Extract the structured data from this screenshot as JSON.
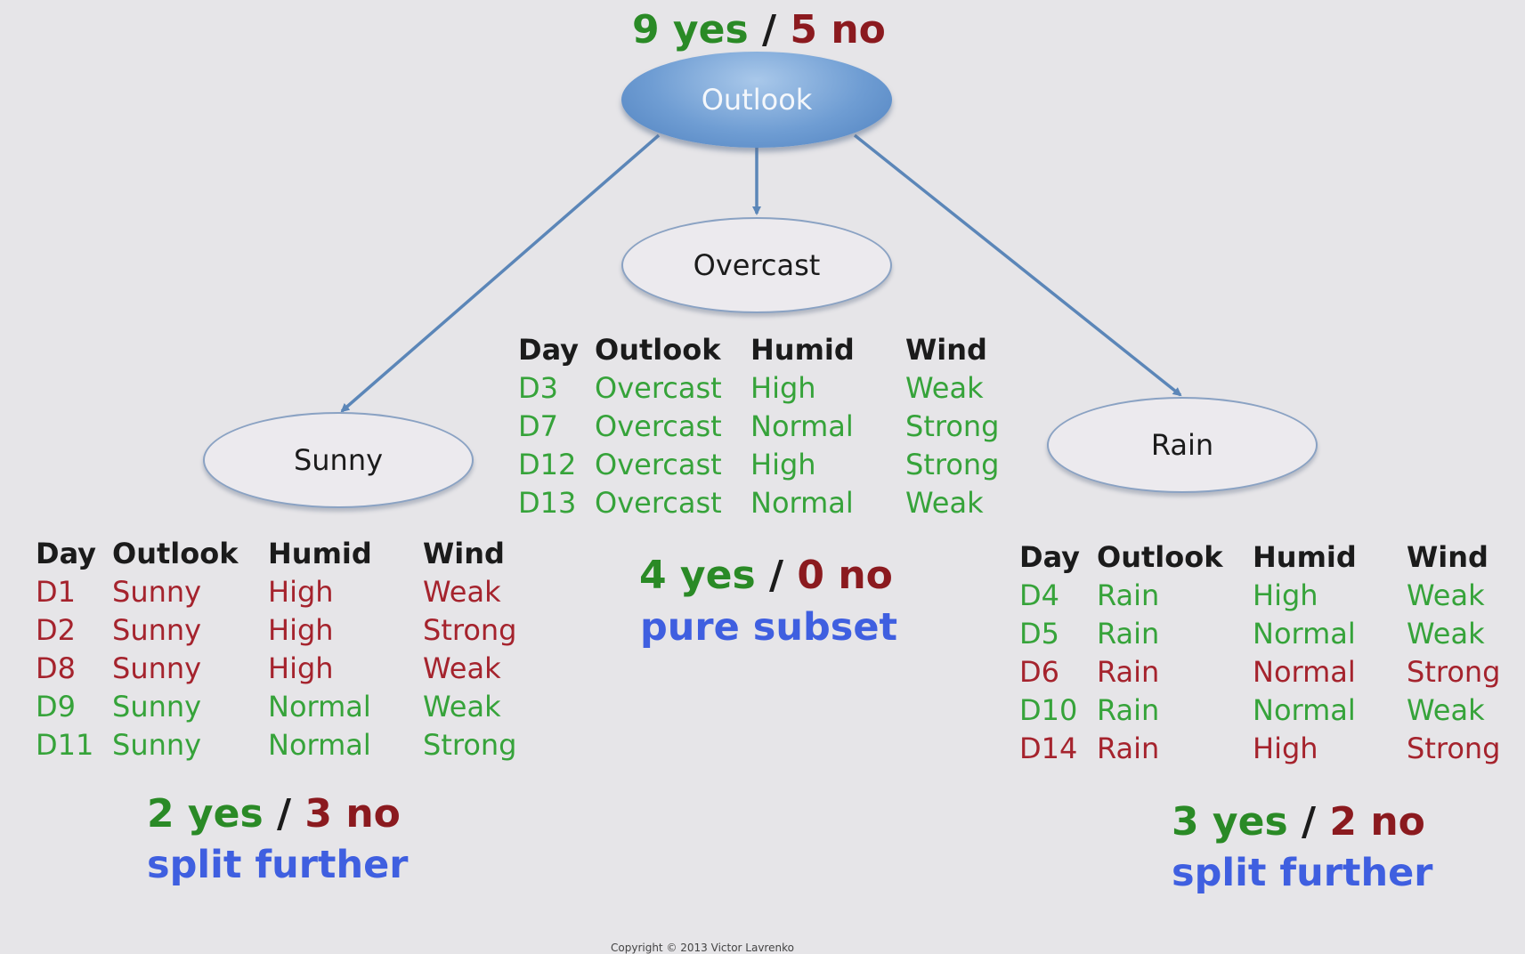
{
  "root": {
    "label": "Outlook",
    "yes": "9 yes",
    "slash": "/",
    "no": "5 no"
  },
  "branches": [
    {
      "key": "sunny",
      "label": "Sunny",
      "yes": "2 yes",
      "slash": "/",
      "no": "3 no",
      "note": "split further",
      "headers": [
        "Day",
        "Outlook",
        "Humid",
        "Wind"
      ],
      "rows": [
        {
          "day": "D1",
          "outlook": "Sunny",
          "humid": "High",
          "wind": "Weak",
          "class": "no"
        },
        {
          "day": "D2",
          "outlook": "Sunny",
          "humid": "High",
          "wind": "Strong",
          "class": "no"
        },
        {
          "day": "D8",
          "outlook": "Sunny",
          "humid": "High",
          "wind": "Weak",
          "class": "no"
        },
        {
          "day": "D9",
          "outlook": "Sunny",
          "humid": "Normal",
          "wind": "Weak",
          "class": "yes"
        },
        {
          "day": "D11",
          "outlook": "Sunny",
          "humid": "Normal",
          "wind": "Strong",
          "class": "yes"
        }
      ]
    },
    {
      "key": "overcast",
      "label": "Overcast",
      "yes": "4 yes",
      "slash": "/",
      "no": "0 no",
      "note": "pure subset",
      "headers": [
        "Day",
        "Outlook",
        "Humid",
        "Wind"
      ],
      "rows": [
        {
          "day": "D3",
          "outlook": "Overcast",
          "humid": "High",
          "wind": "Weak",
          "class": "yes"
        },
        {
          "day": "D7",
          "outlook": "Overcast",
          "humid": "Normal",
          "wind": "Strong",
          "class": "yes"
        },
        {
          "day": "D12",
          "outlook": "Overcast",
          "humid": "High",
          "wind": "Strong",
          "class": "yes"
        },
        {
          "day": "D13",
          "outlook": "Overcast",
          "humid": "Normal",
          "wind": "Weak",
          "class": "yes"
        }
      ]
    },
    {
      "key": "rain",
      "label": "Rain",
      "yes": "3 yes",
      "slash": "/",
      "no": "2 no",
      "note": "split further",
      "headers": [
        "Day",
        "Outlook",
        "Humid",
        "Wind"
      ],
      "rows": [
        {
          "day": "D4",
          "outlook": "Rain",
          "humid": "High",
          "wind": "Weak",
          "class": "yes"
        },
        {
          "day": "D5",
          "outlook": "Rain",
          "humid": "Normal",
          "wind": "Weak",
          "class": "yes"
        },
        {
          "day": "D6",
          "outlook": "Rain",
          "humid": "Normal",
          "wind": "Strong",
          "class": "no"
        },
        {
          "day": "D10",
          "outlook": "Rain",
          "humid": "Normal",
          "wind": "Weak",
          "class": "yes"
        },
        {
          "day": "D14",
          "outlook": "Rain",
          "humid": "High",
          "wind": "Strong",
          "class": "no"
        }
      ]
    }
  ],
  "colors": {
    "yes": "#36a33a",
    "no": "#a5232d",
    "note": "#3f5fe0",
    "edge": "#5b86b8"
  },
  "footer": {
    "copyright": "Copyright © 2013 Victor Lavrenko"
  }
}
